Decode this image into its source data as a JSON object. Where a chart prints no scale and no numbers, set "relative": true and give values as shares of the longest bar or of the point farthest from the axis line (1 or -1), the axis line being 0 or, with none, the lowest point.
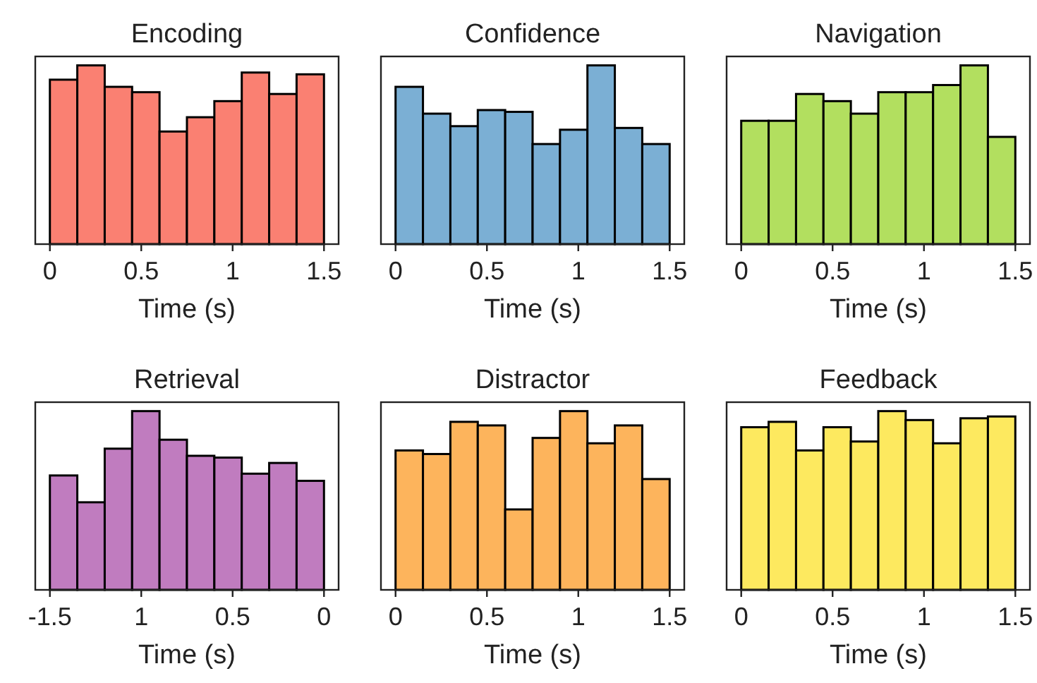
{
  "chart_data": [
    {
      "type": "bar",
      "title": "Encoding",
      "xlabel": "Time (s)",
      "relative": true,
      "color": "#fa8072",
      "x": [
        0.075,
        0.225,
        0.375,
        0.525,
        0.675,
        0.825,
        0.975,
        1.125,
        1.275,
        1.425
      ],
      "values": [
        0.92,
        1,
        0.88,
        0.85,
        0.63,
        0.71,
        0.8,
        0.96,
        0.84,
        0.95
      ],
      "xlim": [
        -0.08,
        1.58
      ],
      "xticks": [
        0,
        0.5,
        1,
        1.5
      ]
    },
    {
      "type": "bar",
      "title": "Confidence",
      "xlabel": "Time (s)",
      "relative": true,
      "color": "#7bafd4",
      "x": [
        0.075,
        0.225,
        0.375,
        0.525,
        0.675,
        0.825,
        0.975,
        1.125,
        1.275,
        1.425
      ],
      "values": [
        0.88,
        0.73,
        0.66,
        0.75,
        0.74,
        0.56,
        0.64,
        1,
        0.65,
        0.56
      ],
      "xlim": [
        -0.08,
        1.58
      ],
      "xticks": [
        0,
        0.5,
        1,
        1.5
      ]
    },
    {
      "type": "bar",
      "title": "Navigation",
      "xlabel": "Time (s)",
      "relative": true,
      "color": "#b2df5f",
      "x": [
        0.075,
        0.225,
        0.375,
        0.525,
        0.675,
        0.825,
        0.975,
        1.125,
        1.275,
        1.425
      ],
      "values": [
        0.69,
        0.69,
        0.84,
        0.8,
        0.73,
        0.85,
        0.85,
        0.89,
        1,
        0.6
      ],
      "xlim": [
        -0.08,
        1.58
      ],
      "xticks": [
        0,
        0.5,
        1,
        1.5
      ]
    },
    {
      "type": "bar",
      "title": "Retrieval",
      "xlabel": "Time (s)",
      "relative": true,
      "color": "#c07cbf",
      "x": [
        -1.425,
        -1.275,
        -1.125,
        -0.975,
        -0.825,
        -0.675,
        -0.525,
        -0.375,
        -0.225,
        -0.075
      ],
      "values": [
        0.64,
        0.49,
        0.79,
        1,
        0.84,
        0.75,
        0.74,
        0.65,
        0.71,
        0.61
      ],
      "xlim": [
        -1.58,
        0.08
      ],
      "xticks": [
        -1.5,
        {
          "value": -1,
          "label": "1"
        },
        {
          "value": -0.5,
          "label": "0.5"
        },
        0
      ]
    },
    {
      "type": "bar",
      "title": "Distractor",
      "xlabel": "Time (s)",
      "relative": true,
      "color": "#fdb45c",
      "x": [
        0.075,
        0.225,
        0.375,
        0.525,
        0.675,
        0.825,
        0.975,
        1.125,
        1.275,
        1.425
      ],
      "values": [
        0.78,
        0.76,
        0.94,
        0.92,
        0.45,
        0.85,
        1,
        0.82,
        0.92,
        0.62
      ],
      "xlim": [
        -0.08,
        1.58
      ],
      "xticks": [
        0,
        0.5,
        1,
        1.5
      ]
    },
    {
      "type": "bar",
      "title": "Feedback",
      "xlabel": "Time (s)",
      "relative": true,
      "color": "#fde95f",
      "x": [
        0.075,
        0.225,
        0.375,
        0.525,
        0.675,
        0.825,
        0.975,
        1.125,
        1.275,
        1.425
      ],
      "values": [
        0.91,
        0.94,
        0.78,
        0.91,
        0.83,
        1,
        0.95,
        0.82,
        0.96,
        0.97
      ],
      "xlim": [
        -0.08,
        1.58
      ],
      "xticks": [
        0,
        0.5,
        1,
        1.5
      ]
    }
  ]
}
